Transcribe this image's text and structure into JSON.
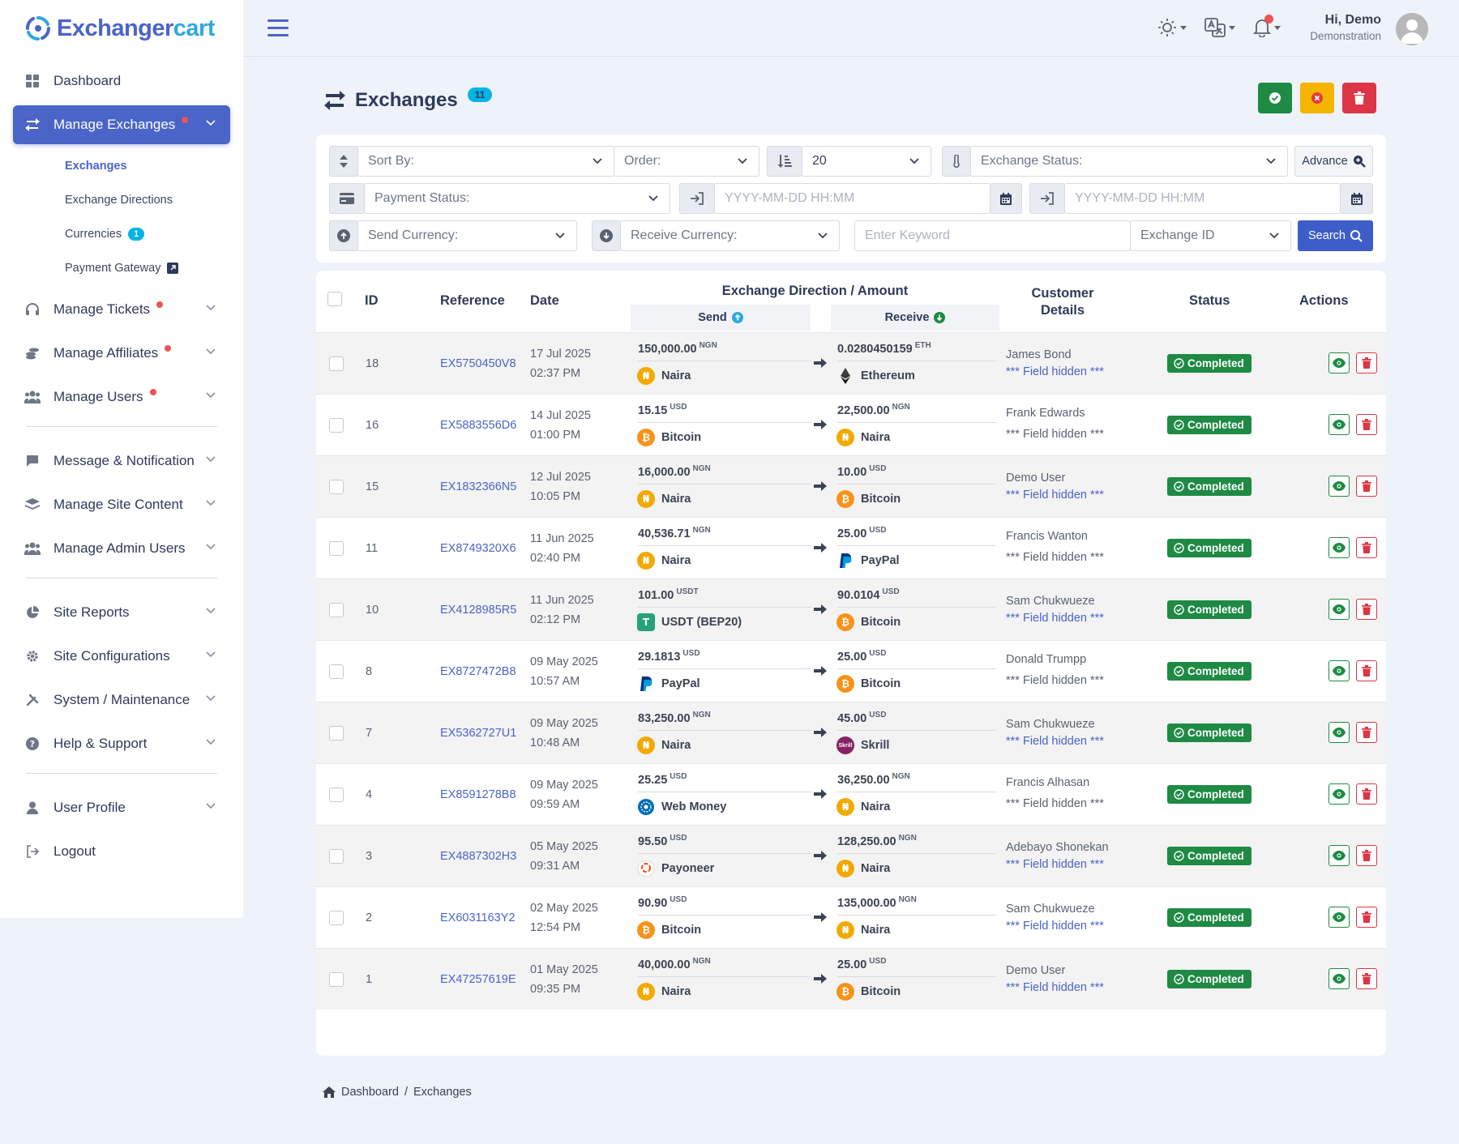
{
  "brand": {
    "logo_prefix": "Exchanger",
    "logo_suffix": "cart"
  },
  "sidebar": {
    "items": [
      {
        "label": "Dashboard"
      },
      {
        "label": "Manage Exchanges"
      },
      {
        "label": "Manage Tickets"
      },
      {
        "label": "Manage Affiliates"
      },
      {
        "label": "Manage Users"
      },
      {
        "label": "Message & Notification"
      },
      {
        "label": "Manage Site Content"
      },
      {
        "label": "Manage Admin Users"
      },
      {
        "label": "Site Reports"
      },
      {
        "label": "Site Configurations"
      },
      {
        "label": "System / Maintenance"
      },
      {
        "label": "Help & Support"
      },
      {
        "label": "User Profile"
      },
      {
        "label": "Logout"
      }
    ],
    "submenu": [
      {
        "label": "Exchanges"
      },
      {
        "label": "Exchange Directions"
      },
      {
        "label": "Currencies",
        "badge": "1"
      },
      {
        "label": "Payment Gateway"
      }
    ]
  },
  "header": {
    "user_greeting": "Hi, Demo",
    "user_role": "Demonstration"
  },
  "page": {
    "title": "Exchanges",
    "count": "11"
  },
  "filters": {
    "sort_by": "Sort By:",
    "order": "Order:",
    "per_page": "20",
    "exchange_status": "Exchange Status:",
    "advance": "Advance",
    "payment_status": "Payment Status:",
    "date_from_placeholder": "YYYY-MM-DD HH:MM",
    "date_to_placeholder": "YYYY-MM-DD HH:MM",
    "send_currency": "Send Currency:",
    "receive_currency": "Receive Currency:",
    "keyword_placeholder": "Enter Keyword",
    "search_field": "Exchange ID",
    "search": "Search"
  },
  "table": {
    "headers": {
      "id": "ID",
      "reference": "Reference",
      "date": "Date",
      "direction": "Exchange Direction / Amount",
      "send": "Send",
      "receive": "Receive",
      "customer_line1": "Customer",
      "customer_line2": "Details",
      "status": "Status",
      "actions": "Actions"
    },
    "rows": [
      {
        "id": "18",
        "ref": "EX5750450V8",
        "date": "17 Jul 2025",
        "time": "02:37 PM",
        "send_amt": "150,000.00",
        "send_unit": "NGN",
        "send_cur": "Naira",
        "send_icon": "naira-icon",
        "recv_amt": "0.0280450159",
        "recv_unit": "ETH",
        "recv_cur": "Ethereum",
        "recv_icon": "ethereum-icon",
        "customer": "James Bond",
        "hidden": "*** Field hidden ***",
        "hidden_link": true,
        "status": "Completed"
      },
      {
        "id": "16",
        "ref": "EX5883556D6",
        "date": "14 Jul 2025",
        "time": "01:00 PM",
        "send_amt": "15.15",
        "send_unit": "USD",
        "send_cur": "Bitcoin",
        "send_icon": "bitcoin-icon",
        "recv_amt": "22,500.00",
        "recv_unit": "NGN",
        "recv_cur": "Naira",
        "recv_icon": "naira-icon",
        "customer": "Frank Edwards",
        "hidden": "*** Field hidden ***",
        "hidden_link": false,
        "status": "Completed"
      },
      {
        "id": "15",
        "ref": "EX1832366N5",
        "date": "12 Jul 2025",
        "time": "10:05 PM",
        "send_amt": "16,000.00",
        "send_unit": "NGN",
        "send_cur": "Naira",
        "send_icon": "naira-icon",
        "recv_amt": "10.00",
        "recv_unit": "USD",
        "recv_cur": "Bitcoin",
        "recv_icon": "bitcoin-icon",
        "customer": "Demo User",
        "hidden": "*** Field hidden ***",
        "hidden_link": true,
        "status": "Completed"
      },
      {
        "id": "11",
        "ref": "EX8749320X6",
        "date": "11 Jun 2025",
        "time": "02:40 PM",
        "send_amt": "40,536.71",
        "send_unit": "NGN",
        "send_cur": "Naira",
        "send_icon": "naira-icon",
        "recv_amt": "25.00",
        "recv_unit": "USD",
        "recv_cur": "PayPal",
        "recv_icon": "paypal-icon",
        "customer": "Francis Wanton",
        "hidden": "*** Field hidden ***",
        "hidden_link": false,
        "status": "Completed"
      },
      {
        "id": "10",
        "ref": "EX4128985R5",
        "date": "11 Jun 2025",
        "time": "02:12 PM",
        "send_amt": "101.00",
        "send_unit": "USDT",
        "send_cur": "USDT (BEP20)",
        "send_icon": "tether-icon",
        "recv_amt": "90.0104",
        "recv_unit": "USD",
        "recv_cur": "Bitcoin",
        "recv_icon": "bitcoin-icon",
        "customer": "Sam Chukwueze",
        "hidden": "*** Field hidden ***",
        "hidden_link": true,
        "status": "Completed"
      },
      {
        "id": "8",
        "ref": "EX8727472B8",
        "date": "09 May 2025",
        "time": "10:57 AM",
        "send_amt": "29.1813",
        "send_unit": "USD",
        "send_cur": "PayPal",
        "send_icon": "paypal-icon",
        "recv_amt": "25.00",
        "recv_unit": "USD",
        "recv_cur": "Bitcoin",
        "recv_icon": "bitcoin-icon",
        "customer": "Donald Trumpp",
        "hidden": "*** Field hidden ***",
        "hidden_link": false,
        "status": "Completed"
      },
      {
        "id": "7",
        "ref": "EX5362727U1",
        "date": "09 May 2025",
        "time": "10:48 AM",
        "send_amt": "83,250.00",
        "send_unit": "NGN",
        "send_cur": "Naira",
        "send_icon": "naira-icon",
        "recv_amt": "45.00",
        "recv_unit": "USD",
        "recv_cur": "Skrill",
        "recv_icon": "skrill-icon",
        "customer": "Sam Chukwueze",
        "hidden": "*** Field hidden ***",
        "hidden_link": true,
        "status": "Completed"
      },
      {
        "id": "4",
        "ref": "EX8591278B8",
        "date": "09 May 2025",
        "time": "09:59 AM",
        "send_amt": "25.25",
        "send_unit": "USD",
        "send_cur": "Web Money",
        "send_icon": "webmoney-icon",
        "recv_amt": "36,250.00",
        "recv_unit": "NGN",
        "recv_cur": "Naira",
        "recv_icon": "naira-icon",
        "customer": "Francis Alhasan",
        "hidden": "*** Field hidden ***",
        "hidden_link": false,
        "status": "Completed"
      },
      {
        "id": "3",
        "ref": "EX4887302H3",
        "date": "05 May 2025",
        "time": "09:31 AM",
        "send_amt": "95.50",
        "send_unit": "USD",
        "send_cur": "Payoneer",
        "send_icon": "payoneer-icon",
        "recv_amt": "128,250.00",
        "recv_unit": "NGN",
        "recv_cur": "Naira",
        "recv_icon": "naira-icon",
        "customer": "Adebayo Shonekan",
        "hidden": "*** Field hidden ***",
        "hidden_link": true,
        "status": "Completed"
      },
      {
        "id": "2",
        "ref": "EX6031163Y2",
        "date": "02 May 2025",
        "time": "12:54 PM",
        "send_amt": "90.90",
        "send_unit": "USD",
        "send_cur": "Bitcoin",
        "send_icon": "bitcoin-icon",
        "recv_amt": "135,000.00",
        "recv_unit": "NGN",
        "recv_cur": "Naira",
        "recv_icon": "naira-icon",
        "customer": "Sam Chukwueze",
        "hidden": "*** Field hidden ***",
        "hidden_link": true,
        "status": "Completed"
      },
      {
        "id": "1",
        "ref": "EX47257619E",
        "date": "01 May 2025",
        "time": "09:35 PM",
        "send_amt": "40,000.00",
        "send_unit": "NGN",
        "send_cur": "Naira",
        "send_icon": "naira-icon",
        "recv_amt": "25.00",
        "recv_unit": "USD",
        "recv_cur": "Bitcoin",
        "recv_icon": "bitcoin-icon",
        "customer": "Demo User",
        "hidden": "*** Field hidden ***",
        "hidden_link": true,
        "status": "Completed"
      }
    ]
  },
  "breadcrumb": {
    "home": "Dashboard",
    "sep": "/",
    "current": "Exchanges"
  },
  "colors": {
    "primary": "#4a64c8",
    "success": "#1e8a44",
    "danger": "#dc3545",
    "warning": "#f5b400"
  }
}
